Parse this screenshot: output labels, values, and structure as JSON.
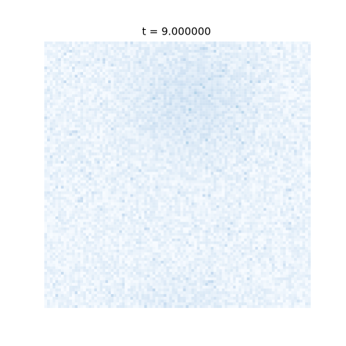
{
  "title": "t = 9.000000"
}
